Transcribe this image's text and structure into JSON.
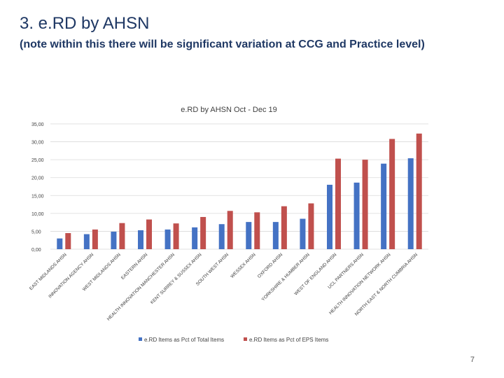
{
  "slide": {
    "title": "3. e.RD by AHSN",
    "subtitle": "(note within this there will be significant variation at CCG and Practice level)",
    "page_number": "7"
  },
  "colors": {
    "series1": "#4472c4",
    "series2": "#c0504d",
    "grid": "#d9d9d9",
    "text": "#404040"
  },
  "chart_data": {
    "type": "bar",
    "title": "e.RD by AHSN Oct - Dec 19",
    "xlabel": "",
    "ylabel": "",
    "ylim": [
      0,
      35
    ],
    "yticks": [
      "0,00",
      "5,00",
      "10,00",
      "15,00",
      "20,00",
      "25,00",
      "30,00",
      "35,00"
    ],
    "grid": true,
    "legend": "bottom",
    "categories": [
      "EAST MIDLANDS AHSN",
      "INNOVATION AGENCY AHSN",
      "WEST MIDLANDS AHSN",
      "EASTERN AHSN",
      "HEALTH INNOVATION MANCHESTER AHSN",
      "KENT SURREY & SUSSEX AHSN",
      "SOUTH WEST AHSN",
      "WESSEX AHSN",
      "OXFORD AHSN",
      "YORKSHIRE & HUMBER AHSN",
      "WEST OF ENGLAND AHSN",
      "UCL PARTNERS AHSN",
      "HEALTH INNOVATION NETWORK AHSN",
      "NORTH EAST & NORTH CUMBRIA AHSN"
    ],
    "series": [
      {
        "name": "e.RD Items as Pct of Total Items",
        "values": [
          3.0,
          4.2,
          4.9,
          5.3,
          5.5,
          6.1,
          7.0,
          7.6,
          7.6,
          8.5,
          18.0,
          18.6,
          23.9,
          25.4
        ]
      },
      {
        "name": "e.RD Items as Pct of EPS Items",
        "values": [
          4.5,
          5.5,
          7.3,
          8.3,
          7.2,
          9.0,
          10.7,
          10.3,
          12.0,
          12.8,
          25.3,
          25.0,
          30.8,
          32.3
        ]
      }
    ]
  }
}
